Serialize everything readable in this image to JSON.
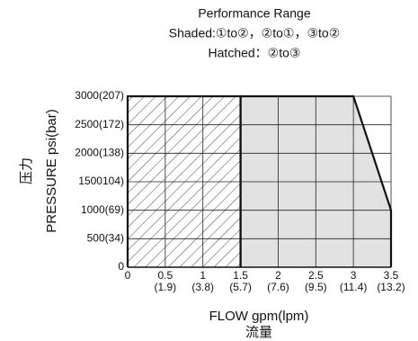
{
  "chart_data": {
    "type": "area",
    "title": "Performance Range",
    "subtitle": [
      "Shaded:①to②，②to①，③to②",
      "Hatched：②to③"
    ],
    "x_label": "FLOW gpm(lpm)",
    "x_label_cn": "流量",
    "y_label": "PRESSURE psi(bar)",
    "y_label_cn": "压力",
    "xlim": [
      0,
      3.5
    ],
    "ylim": [
      0,
      3000
    ],
    "xticks": [
      0,
      0.5,
      1,
      1.5,
      2,
      2.5,
      3,
      3.5
    ],
    "xtick_secondary": [
      null,
      "(1.9)",
      "(3.8)",
      "(5.7)",
      "(7.6)",
      "(9.5)",
      "(11.4)",
      "(13.2)"
    ],
    "yticks": [
      0,
      {
        "value": 500,
        "label": "500(34)"
      },
      {
        "value": 1000,
        "label": "1000(69)"
      },
      {
        "value": 1500,
        "label": "1500104)"
      },
      {
        "value": 2000,
        "label": "2000(138)"
      },
      {
        "value": 2500,
        "label": "2500(172)"
      },
      {
        "value": 3000,
        "label": "3000(207)"
      }
    ],
    "grid": true,
    "series": [
      {
        "color": "#e2e2e2",
        "fill_style": "solid",
        "x": [
          1.5,
          1.5,
          3,
          3.5,
          3.5
        ],
        "y": [
          0,
          3000,
          3000,
          1000,
          0
        ]
      },
      {
        "color": "#ffffff",
        "fill_style": "hatch",
        "x": [
          0,
          0,
          1.5,
          1.5
        ],
        "y": [
          0,
          3000,
          3000,
          0
        ]
      }
    ]
  }
}
